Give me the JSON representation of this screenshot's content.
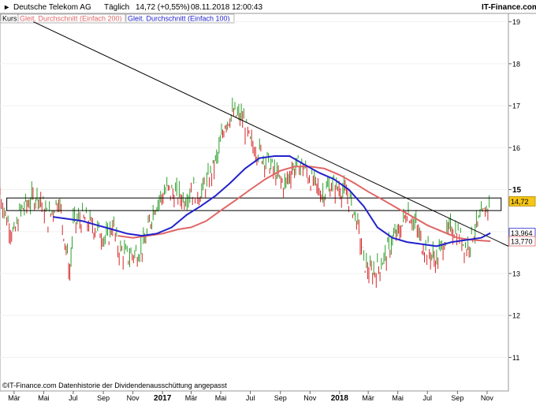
{
  "header": {
    "instrument": "Deutsche Telekom AG",
    "period": "Täglich",
    "quote": "14,72 (+0,55%)",
    "datetime": "08.11.2018 12:00:43",
    "brand": "IT-Finance.com"
  },
  "legend": {
    "kurs": "Kurs",
    "ma200": "Gleit. Durchschnitt (Einfach 200)",
    "ma100": "Gleit. Durchschnitt (Einfach 100)"
  },
  "footer": "©IT-Finance.com  Datenhistorie der Dividendenausschüttung angepasst",
  "colors": {
    "price_up": "#2ca02c",
    "price_down": "#d62728",
    "ma200": "#e06666",
    "ma100": "#2222cc",
    "trendline": "#000000",
    "box": "#000000"
  },
  "chart_data": {
    "type": "line",
    "title": "Deutsche Telekom AG",
    "x_ticks": [
      "Mär",
      "Mai",
      "Jul",
      "Sep",
      "Nov",
      "2017",
      "Mär",
      "Mai",
      "Jul",
      "Sep",
      "Nov",
      "2018",
      "Mär",
      "Mai",
      "Jul",
      "Sep",
      "Nov"
    ],
    "y_ticks": [
      11,
      12,
      13,
      14,
      15,
      16,
      17,
      18,
      19
    ],
    "ylim": [
      10.2,
      19.2
    ],
    "x_range": [
      "2016-02-01",
      "2018-12-15"
    ],
    "current_price": 14.72,
    "price_label": "14,72",
    "ma100_last": 13.964,
    "ma100_label": "13,964",
    "ma200_last": 13.77,
    "ma200_label": "13,770",
    "resistance_box": {
      "from": "2016-02-15",
      "to": "2018-11-30",
      "low": 14.5,
      "high": 14.8
    },
    "trendline": [
      {
        "date": "2016-04-10",
        "value": 19.0
      },
      {
        "date": "2018-12-15",
        "value": 13.65
      }
    ],
    "series": [
      {
        "name": "Kurs",
        "values": [
          {
            "date": "2016-02-01",
            "value": 14.9
          },
          {
            "date": "2016-02-15",
            "value": 14.3
          },
          {
            "date": "2016-03-01",
            "value": 13.9
          },
          {
            "date": "2016-03-15",
            "value": 14.5
          },
          {
            "date": "2016-04-01",
            "value": 14.7
          },
          {
            "date": "2016-04-20",
            "value": 14.9
          },
          {
            "date": "2016-05-10",
            "value": 14.3
          },
          {
            "date": "2016-06-01",
            "value": 14.8
          },
          {
            "date": "2016-06-24",
            "value": 13.0
          },
          {
            "date": "2016-07-01",
            "value": 14.2
          },
          {
            "date": "2016-07-20",
            "value": 14.3
          },
          {
            "date": "2016-08-15",
            "value": 14.1
          },
          {
            "date": "2016-09-10",
            "value": 13.8
          },
          {
            "date": "2016-09-20",
            "value": 14.2
          },
          {
            "date": "2016-10-01",
            "value": 13.6
          },
          {
            "date": "2016-10-20",
            "value": 13.4
          },
          {
            "date": "2016-11-10",
            "value": 13.5
          },
          {
            "date": "2016-11-25",
            "value": 13.7
          },
          {
            "date": "2016-12-15",
            "value": 14.6
          },
          {
            "date": "2017-01-10",
            "value": 15.0
          },
          {
            "date": "2017-01-25",
            "value": 14.9
          },
          {
            "date": "2017-02-15",
            "value": 14.8
          },
          {
            "date": "2017-03-01",
            "value": 15.0
          },
          {
            "date": "2017-03-20",
            "value": 14.9
          },
          {
            "date": "2017-04-05",
            "value": 15.2
          },
          {
            "date": "2017-04-25",
            "value": 15.8
          },
          {
            "date": "2017-05-10",
            "value": 16.6
          },
          {
            "date": "2017-05-25",
            "value": 16.8
          },
          {
            "date": "2017-06-15",
            "value": 16.7
          },
          {
            "date": "2017-07-01",
            "value": 16.1
          },
          {
            "date": "2017-07-20",
            "value": 15.9
          },
          {
            "date": "2017-08-10",
            "value": 15.6
          },
          {
            "date": "2017-08-25",
            "value": 15.3
          },
          {
            "date": "2017-09-10",
            "value": 15.1
          },
          {
            "date": "2017-09-25",
            "value": 15.5
          },
          {
            "date": "2017-10-15",
            "value": 15.6
          },
          {
            "date": "2017-11-05",
            "value": 15.2
          },
          {
            "date": "2017-11-25",
            "value": 14.9
          },
          {
            "date": "2017-12-15",
            "value": 15.1
          },
          {
            "date": "2018-01-05",
            "value": 15.0
          },
          {
            "date": "2018-01-20",
            "value": 14.8
          },
          {
            "date": "2018-02-05",
            "value": 14.3
          },
          {
            "date": "2018-02-20",
            "value": 13.3
          },
          {
            "date": "2018-03-05",
            "value": 13.0
          },
          {
            "date": "2018-03-20",
            "value": 13.1
          },
          {
            "date": "2018-04-05",
            "value": 13.4
          },
          {
            "date": "2018-04-20",
            "value": 13.8
          },
          {
            "date": "2018-05-05",
            "value": 14.0
          },
          {
            "date": "2018-05-20",
            "value": 14.5
          },
          {
            "date": "2018-06-05",
            "value": 14.2
          },
          {
            "date": "2018-06-20",
            "value": 13.7
          },
          {
            "date": "2018-07-05",
            "value": 13.5
          },
          {
            "date": "2018-07-20",
            "value": 13.3
          },
          {
            "date": "2018-08-05",
            "value": 13.8
          },
          {
            "date": "2018-08-20",
            "value": 14.1
          },
          {
            "date": "2018-09-05",
            "value": 13.9
          },
          {
            "date": "2018-09-20",
            "value": 13.6
          },
          {
            "date": "2018-10-05",
            "value": 14.0
          },
          {
            "date": "2018-10-20",
            "value": 14.3
          },
          {
            "date": "2018-11-08",
            "value": 14.72
          }
        ]
      },
      {
        "name": "Gleit. Durchschnitt (Einfach 100)",
        "values": [
          {
            "date": "2016-05-20",
            "value": 14.35
          },
          {
            "date": "2016-06-20",
            "value": 14.3
          },
          {
            "date": "2016-07-20",
            "value": 14.25
          },
          {
            "date": "2016-08-20",
            "value": 14.15
          },
          {
            "date": "2016-09-20",
            "value": 14.05
          },
          {
            "date": "2016-10-20",
            "value": 13.95
          },
          {
            "date": "2016-11-20",
            "value": 13.9
          },
          {
            "date": "2016-12-20",
            "value": 13.95
          },
          {
            "date": "2017-01-20",
            "value": 14.1
          },
          {
            "date": "2017-02-20",
            "value": 14.4
          },
          {
            "date": "2017-03-20",
            "value": 14.6
          },
          {
            "date": "2017-04-20",
            "value": 14.85
          },
          {
            "date": "2017-05-20",
            "value": 15.15
          },
          {
            "date": "2017-06-20",
            "value": 15.5
          },
          {
            "date": "2017-07-20",
            "value": 15.75
          },
          {
            "date": "2017-08-20",
            "value": 15.8
          },
          {
            "date": "2017-09-20",
            "value": 15.8
          },
          {
            "date": "2017-10-20",
            "value": 15.6
          },
          {
            "date": "2017-11-20",
            "value": 15.4
          },
          {
            "date": "2017-12-20",
            "value": 15.25
          },
          {
            "date": "2018-01-20",
            "value": 15.0
          },
          {
            "date": "2018-02-20",
            "value": 14.6
          },
          {
            "date": "2018-03-20",
            "value": 14.1
          },
          {
            "date": "2018-04-20",
            "value": 13.85
          },
          {
            "date": "2018-05-20",
            "value": 13.75
          },
          {
            "date": "2018-06-20",
            "value": 13.7
          },
          {
            "date": "2018-07-20",
            "value": 13.65
          },
          {
            "date": "2018-08-20",
            "value": 13.75
          },
          {
            "date": "2018-09-20",
            "value": 13.8
          },
          {
            "date": "2018-10-20",
            "value": 13.85
          },
          {
            "date": "2018-11-08",
            "value": 13.964
          }
        ]
      },
      {
        "name": "Gleit. Durchschnitt (Einfach 200)",
        "values": [
          {
            "date": "2016-10-01",
            "value": 13.9
          },
          {
            "date": "2016-11-01",
            "value": 13.85
          },
          {
            "date": "2016-12-01",
            "value": 13.9
          },
          {
            "date": "2017-01-01",
            "value": 13.95
          },
          {
            "date": "2017-02-01",
            "value": 14.05
          },
          {
            "date": "2017-03-01",
            "value": 14.1
          },
          {
            "date": "2017-04-01",
            "value": 14.25
          },
          {
            "date": "2017-05-01",
            "value": 14.5
          },
          {
            "date": "2017-06-01",
            "value": 14.75
          },
          {
            "date": "2017-07-01",
            "value": 15.0
          },
          {
            "date": "2017-08-01",
            "value": 15.25
          },
          {
            "date": "2017-09-01",
            "value": 15.45
          },
          {
            "date": "2017-10-01",
            "value": 15.55
          },
          {
            "date": "2017-11-01",
            "value": 15.55
          },
          {
            "date": "2017-12-01",
            "value": 15.5
          },
          {
            "date": "2018-01-01",
            "value": 15.35
          },
          {
            "date": "2018-02-01",
            "value": 15.15
          },
          {
            "date": "2018-03-01",
            "value": 14.95
          },
          {
            "date": "2018-04-01",
            "value": 14.75
          },
          {
            "date": "2018-05-01",
            "value": 14.55
          },
          {
            "date": "2018-06-01",
            "value": 14.35
          },
          {
            "date": "2018-07-01",
            "value": 14.15
          },
          {
            "date": "2018-08-01",
            "value": 14.0
          },
          {
            "date": "2018-09-01",
            "value": 13.85
          },
          {
            "date": "2018-10-01",
            "value": 13.8
          },
          {
            "date": "2018-11-08",
            "value": 13.77
          }
        ]
      }
    ]
  }
}
